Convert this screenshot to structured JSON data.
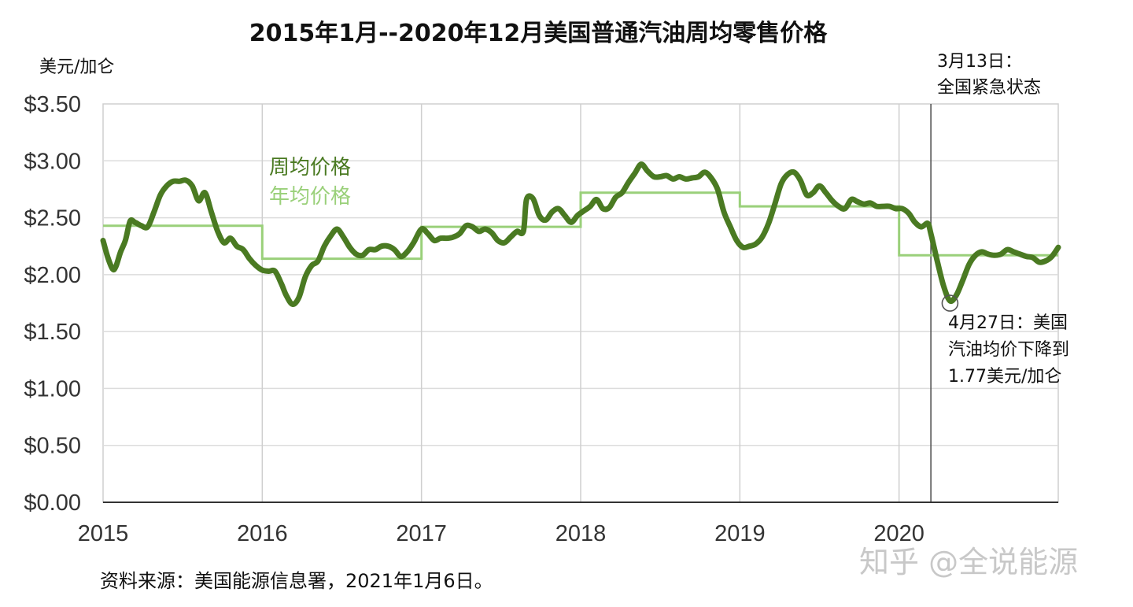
{
  "chart_data": {
    "type": "line",
    "title": "2015年1月--2020年12月美国普通汽油周均零售价格",
    "ylabel": "美元/加仑",
    "xlim": [
      2015.0,
      2021.0
    ],
    "ylim": [
      0,
      3.5
    ],
    "x_ticks": [
      "2015",
      "2016",
      "2017",
      "2018",
      "2019",
      "2020"
    ],
    "y_ticks": [
      "$0.00",
      "$0.50",
      "$1.00",
      "$1.50",
      "$2.00",
      "$2.50",
      "$3.00",
      "$3.50"
    ],
    "grid": true,
    "legend_position": "upper-left",
    "series": [
      {
        "name": "周均价格",
        "color": "#4a7a22",
        "x": [
          2015.0,
          2015.03,
          2015.06,
          2015.08,
          2015.11,
          2015.14,
          2015.17,
          2015.2,
          2015.24,
          2015.28,
          2015.32,
          2015.36,
          2015.4,
          2015.44,
          2015.48,
          2015.52,
          2015.56,
          2015.6,
          2015.64,
          2015.68,
          2015.72,
          2015.76,
          2015.8,
          2015.84,
          2015.88,
          2015.92,
          2015.96,
          2016.0,
          2016.04,
          2016.08,
          2016.12,
          2016.15,
          2016.19,
          2016.23,
          2016.27,
          2016.31,
          2016.35,
          2016.39,
          2016.43,
          2016.47,
          2016.51,
          2016.55,
          2016.59,
          2016.63,
          2016.67,
          2016.71,
          2016.75,
          2016.79,
          2016.83,
          2016.87,
          2016.91,
          2016.95,
          2017.0,
          2017.04,
          2017.08,
          2017.12,
          2017.16,
          2017.2,
          2017.24,
          2017.28,
          2017.32,
          2017.36,
          2017.4,
          2017.44,
          2017.48,
          2017.52,
          2017.56,
          2017.6,
          2017.64,
          2017.66,
          2017.7,
          2017.74,
          2017.78,
          2017.82,
          2017.86,
          2017.9,
          2017.94,
          2017.98,
          2018.02,
          2018.06,
          2018.1,
          2018.14,
          2018.18,
          2018.22,
          2018.26,
          2018.3,
          2018.34,
          2018.38,
          2018.42,
          2018.46,
          2018.5,
          2018.54,
          2018.58,
          2018.62,
          2018.66,
          2018.7,
          2018.74,
          2018.78,
          2018.82,
          2018.86,
          2018.9,
          2018.94,
          2018.98,
          2019.02,
          2019.06,
          2019.1,
          2019.14,
          2019.18,
          2019.22,
          2019.26,
          2019.3,
          2019.34,
          2019.38,
          2019.42,
          2019.46,
          2019.5,
          2019.54,
          2019.58,
          2019.62,
          2019.66,
          2019.7,
          2019.74,
          2019.78,
          2019.82,
          2019.86,
          2019.9,
          2019.94,
          2019.98,
          2020.02,
          2020.06,
          2020.1,
          2020.14,
          2020.18,
          2020.2,
          2020.24,
          2020.28,
          2020.32,
          2020.36,
          2020.4,
          2020.44,
          2020.48,
          2020.52,
          2020.56,
          2020.6,
          2020.64,
          2020.68,
          2020.72,
          2020.76,
          2020.8,
          2020.84,
          2020.88,
          2020.92,
          2020.96,
          2021.0
        ],
        "values": [
          2.3,
          2.15,
          2.05,
          2.07,
          2.2,
          2.3,
          2.47,
          2.46,
          2.43,
          2.42,
          2.55,
          2.7,
          2.78,
          2.82,
          2.82,
          2.83,
          2.78,
          2.65,
          2.72,
          2.55,
          2.38,
          2.28,
          2.32,
          2.25,
          2.22,
          2.14,
          2.08,
          2.04,
          2.03,
          2.03,
          1.92,
          1.82,
          1.74,
          1.8,
          1.98,
          2.08,
          2.12,
          2.25,
          2.34,
          2.4,
          2.33,
          2.24,
          2.18,
          2.17,
          2.22,
          2.22,
          2.25,
          2.25,
          2.22,
          2.16,
          2.2,
          2.28,
          2.4,
          2.36,
          2.3,
          2.32,
          2.32,
          2.33,
          2.36,
          2.43,
          2.42,
          2.38,
          2.4,
          2.37,
          2.3,
          2.28,
          2.33,
          2.38,
          2.38,
          2.66,
          2.67,
          2.52,
          2.48,
          2.55,
          2.58,
          2.52,
          2.46,
          2.52,
          2.56,
          2.6,
          2.66,
          2.58,
          2.59,
          2.68,
          2.72,
          2.81,
          2.89,
          2.97,
          2.91,
          2.86,
          2.86,
          2.87,
          2.84,
          2.86,
          2.84,
          2.85,
          2.86,
          2.9,
          2.85,
          2.75,
          2.55,
          2.42,
          2.3,
          2.24,
          2.25,
          2.27,
          2.33,
          2.45,
          2.62,
          2.8,
          2.88,
          2.9,
          2.83,
          2.7,
          2.72,
          2.78,
          2.72,
          2.65,
          2.6,
          2.58,
          2.66,
          2.64,
          2.62,
          2.63,
          2.6,
          2.6,
          2.6,
          2.58,
          2.58,
          2.54,
          2.46,
          2.42,
          2.45,
          2.36,
          2.12,
          1.9,
          1.77,
          1.82,
          1.95,
          2.09,
          2.17,
          2.2,
          2.18,
          2.17,
          2.18,
          2.22,
          2.2,
          2.18,
          2.16,
          2.15,
          2.11,
          2.12,
          2.16,
          2.24
        ]
      },
      {
        "name": "年均价格",
        "color": "#9ad07a",
        "x": [
          2015,
          2016,
          2017,
          2018,
          2019,
          2020,
          2021
        ],
        "values": [
          2.43,
          2.14,
          2.42,
          2.72,
          2.6,
          2.17,
          2.17
        ],
        "step": true
      }
    ],
    "annotations": [
      {
        "x": 2020.2,
        "lines": [
          "3月13日：",
          "全国紧急状态"
        ]
      },
      {
        "x": 2020.32,
        "y": 1.77,
        "lines": [
          "4月27日：美国",
          "汽油均价下降到",
          "1.77美元/加仑"
        ]
      }
    ]
  },
  "source": "资料来源：美国能源信息署，2021年1月6日。",
  "watermark": "知乎 @全说能源"
}
